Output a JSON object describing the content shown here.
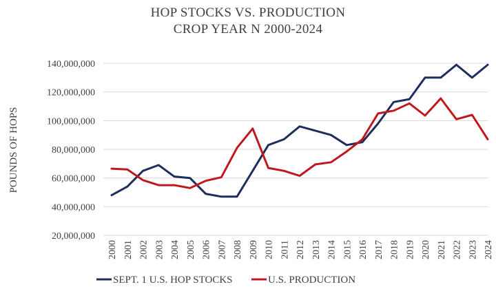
{
  "chart_data": {
    "type": "line",
    "title": "HOP STOCKS VS. PRODUCTION",
    "subtitle": "CROP YEAR N 2000-2024",
    "ylabel": "POUNDS OF HOPS",
    "xlabel": "",
    "ylim": [
      20000000,
      140000000
    ],
    "yticks": [
      20000000,
      40000000,
      60000000,
      80000000,
      100000000,
      120000000,
      140000000
    ],
    "ytick_labels": [
      "20,000,000",
      "40,000,000",
      "60,000,000",
      "80,000,000",
      "100,000,000",
      "120,000,000",
      "140,000,000"
    ],
    "categories": [
      "2000",
      "2001",
      "2002",
      "2003",
      "2004",
      "2005",
      "2006",
      "2007",
      "2008",
      "2009",
      "2010",
      "2011",
      "2012",
      "2013",
      "2014",
      "2015",
      "2016",
      "2017",
      "2018",
      "2019",
      "2020",
      "2021",
      "2022",
      "2023",
      "2024"
    ],
    "grid": "horizontal",
    "legend_position": "bottom",
    "series": [
      {
        "name": "SEPT. 1 U.S. HOP STOCKS",
        "color": "#1f2d5c",
        "values": [
          48000000,
          54000000,
          65000000,
          69000000,
          61000000,
          60000000,
          49000000,
          47000000,
          47000000,
          65000000,
          83000000,
          87000000,
          96000000,
          93000000,
          90000000,
          83000000,
          85000000,
          98000000,
          113000000,
          115000000,
          130000000,
          130000000,
          139000000,
          130000000,
          139000000
        ]
      },
      {
        "name": "U.S. PRODUCTION",
        "color": "#c0171d",
        "values": [
          66500000,
          66000000,
          58500000,
          55000000,
          55000000,
          53000000,
          58000000,
          60500000,
          81000000,
          94500000,
          67000000,
          65000000,
          61500000,
          69500000,
          71000000,
          78500000,
          87000000,
          105000000,
          107000000,
          112000000,
          103500000,
          115500000,
          101000000,
          104000000,
          87000000
        ]
      }
    ]
  }
}
